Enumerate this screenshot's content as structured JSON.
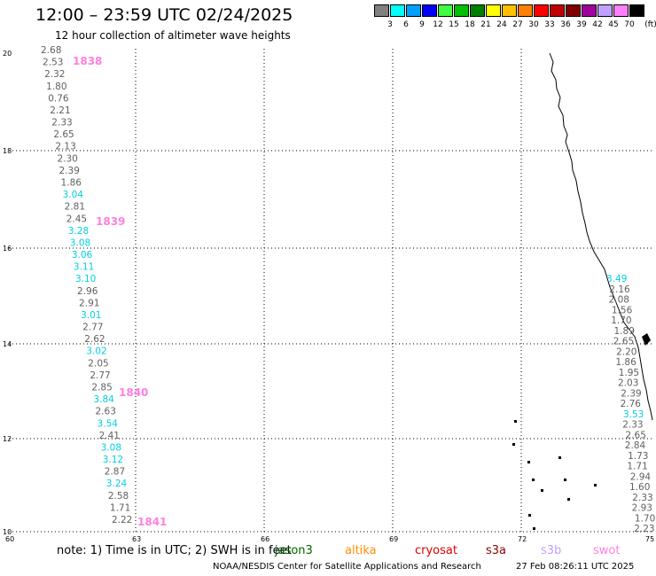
{
  "header": {
    "title": "12:00 – 23:59 UTC 02/24/2025",
    "subtitle": "12 hour collection of altimeter wave heights"
  },
  "legend": {
    "unit": "(ft)",
    "bins": [
      {
        "label": "3",
        "color": "#808080"
      },
      {
        "label": "6",
        "color": "#00ffff"
      },
      {
        "label": "9",
        "color": "#00a0ff"
      },
      {
        "label": "12",
        "color": "#0000ff"
      },
      {
        "label": "15",
        "color": "#40ff40"
      },
      {
        "label": "18",
        "color": "#00c000"
      },
      {
        "label": "21",
        "color": "#008000"
      },
      {
        "label": "24",
        "color": "#ffff00"
      },
      {
        "label": "27",
        "color": "#ffc000"
      },
      {
        "label": "30",
        "color": "#ff8000"
      },
      {
        "label": "33",
        "color": "#ff0000"
      },
      {
        "label": "36",
        "color": "#c00000"
      },
      {
        "label": "39",
        "color": "#800000"
      },
      {
        "label": "42",
        "color": "#a000a0"
      },
      {
        "label": "45",
        "color": "#c0a0ff"
      },
      {
        "label": "70",
        "color": "#ff80ff"
      },
      {
        "label": "",
        "color": "#000000"
      }
    ]
  },
  "axes": {
    "y_ticks": [
      "20",
      "18",
      "16",
      "14",
      "12",
      "10"
    ],
    "x_ticks": [
      "60",
      "63",
      "66",
      "69",
      "72",
      "75"
    ]
  },
  "track_a": {
    "values": [
      {
        "t": "2.68",
        "c": "gray"
      },
      {
        "t": "2.53",
        "c": "gray"
      },
      {
        "t": "2.32",
        "c": "gray"
      },
      {
        "t": "1.80",
        "c": "gray"
      },
      {
        "t": "0.76",
        "c": "gray"
      },
      {
        "t": "2.21",
        "c": "gray"
      },
      {
        "t": "2.33",
        "c": "gray"
      },
      {
        "t": "2.65",
        "c": "gray"
      },
      {
        "t": "2.13",
        "c": "gray"
      },
      {
        "t": "2.30",
        "c": "gray"
      },
      {
        "t": "2.39",
        "c": "gray"
      },
      {
        "t": "1.86",
        "c": "gray"
      },
      {
        "t": "3.04",
        "c": "cyan"
      },
      {
        "t": "2.81",
        "c": "gray"
      },
      {
        "t": "2.45",
        "c": "gray"
      },
      {
        "t": "3.28",
        "c": "cyan"
      },
      {
        "t": "3.08",
        "c": "cyan"
      },
      {
        "t": "3.06",
        "c": "cyan"
      },
      {
        "t": "3.11",
        "c": "cyan"
      },
      {
        "t": "3.10",
        "c": "cyan"
      },
      {
        "t": "2.96",
        "c": "gray"
      },
      {
        "t": "2.91",
        "c": "gray"
      },
      {
        "t": "3.01",
        "c": "cyan"
      },
      {
        "t": "2.77",
        "c": "gray"
      },
      {
        "t": "2.62",
        "c": "gray"
      },
      {
        "t": "3.02",
        "c": "cyan"
      },
      {
        "t": "2.05",
        "c": "gray"
      },
      {
        "t": "2.77",
        "c": "gray"
      },
      {
        "t": "2.85",
        "c": "gray"
      },
      {
        "t": "3.84",
        "c": "cyan"
      },
      {
        "t": "2.63",
        "c": "gray"
      },
      {
        "t": "3.54",
        "c": "cyan"
      },
      {
        "t": "2.41",
        "c": "gray"
      },
      {
        "t": "3.08",
        "c": "cyan"
      },
      {
        "t": "3.12",
        "c": "cyan"
      },
      {
        "t": "2.87",
        "c": "gray"
      },
      {
        "t": "3.24",
        "c": "cyan"
      },
      {
        "t": "2.58",
        "c": "gray"
      },
      {
        "t": "1.71",
        "c": "gray"
      },
      {
        "t": "2.22",
        "c": "gray"
      }
    ],
    "pass_times": [
      "1838",
      "1839",
      "1840",
      "1841"
    ]
  },
  "track_b": {
    "values": [
      {
        "t": "3.49",
        "c": "cyan"
      },
      {
        "t": "2.16",
        "c": "gray"
      },
      {
        "t": "2.08",
        "c": "gray"
      },
      {
        "t": "1.56",
        "c": "gray"
      },
      {
        "t": "1.70",
        "c": "gray"
      },
      {
        "t": "1.89",
        "c": "gray"
      },
      {
        "t": "2.65",
        "c": "gray"
      },
      {
        "t": "2.20",
        "c": "gray"
      },
      {
        "t": "1.86",
        "c": "gray"
      },
      {
        "t": "1.95",
        "c": "gray"
      },
      {
        "t": "2.03",
        "c": "gray"
      },
      {
        "t": "2.39",
        "c": "gray"
      },
      {
        "t": "2.76",
        "c": "gray"
      },
      {
        "t": "3.53",
        "c": "cyan"
      },
      {
        "t": "2.33",
        "c": "gray"
      },
      {
        "t": "2.65",
        "c": "gray"
      },
      {
        "t": "2.84",
        "c": "gray"
      },
      {
        "t": "1.73",
        "c": "gray"
      },
      {
        "t": "1.71",
        "c": "gray"
      },
      {
        "t": "2.94",
        "c": "gray"
      },
      {
        "t": "1.60",
        "c": "gray"
      },
      {
        "t": "2.33",
        "c": "gray"
      },
      {
        "t": "2.93",
        "c": "gray"
      },
      {
        "t": "1.70",
        "c": "gray"
      },
      {
        "t": "2.23",
        "c": "gray"
      }
    ]
  },
  "colors": {
    "gray": "#606060",
    "cyan": "#00d0e0",
    "pass": "#ff80e0",
    "dark_red": "#8b0000"
  },
  "footer": {
    "note": "note: 1) Time is in UTC; 2) SWH is in feet",
    "satellites": [
      {
        "name": "jason3",
        "color": "#006400"
      },
      {
        "name": "altika",
        "color": "#ff8c00"
      },
      {
        "name": "cryosat",
        "color": "#dd0000"
      },
      {
        "name": "s3a",
        "color": "#8b0000"
      },
      {
        "name": "s3b",
        "color": "#c0a0ff"
      },
      {
        "name": "swot",
        "color": "#ff80e0"
      }
    ],
    "credit": "NOAA/NESDIS Center for Satellite Applications and Research",
    "updated": "27 Feb 08:26:11 UTC 2025"
  }
}
